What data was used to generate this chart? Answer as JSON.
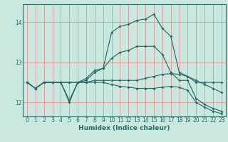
{
  "bg_color": "#c8e8e0",
  "grid_color": "#f08080",
  "line_color": "#2a6b65",
  "marker_color": "#2a6b65",
  "xlabel": "Humidex (Indice chaleur)",
  "xlim": [
    -0.5,
    23.5
  ],
  "ylim": [
    11.65,
    14.45
  ],
  "yticks": [
    12,
    13,
    14
  ],
  "xticks": [
    0,
    1,
    2,
    3,
    4,
    5,
    6,
    7,
    8,
    9,
    10,
    11,
    12,
    13,
    14,
    15,
    16,
    17,
    18,
    19,
    20,
    21,
    22,
    23
  ],
  "lines": [
    {
      "x": [
        0,
        1,
        2,
        3,
        4,
        5,
        6,
        7,
        8,
        9,
        10,
        11,
        12,
        13,
        14,
        15,
        16,
        17,
        18,
        19,
        20,
        21,
        22,
        23
      ],
      "y": [
        12.5,
        12.35,
        12.5,
        12.5,
        12.5,
        12.05,
        12.5,
        12.55,
        12.75,
        12.85,
        13.75,
        13.9,
        13.95,
        14.05,
        14.08,
        14.2,
        13.85,
        13.65,
        12.75,
        12.65,
        12.5,
        12.5,
        12.5,
        12.5
      ]
    },
    {
      "x": [
        0,
        1,
        2,
        3,
        4,
        5,
        6,
        7,
        8,
        9,
        10,
        11,
        12,
        13,
        14,
        15,
        16,
        17,
        18,
        19,
        20,
        21,
        22,
        23
      ],
      "y": [
        12.5,
        12.35,
        12.5,
        12.5,
        12.5,
        12.0,
        12.5,
        12.6,
        12.8,
        12.85,
        13.1,
        13.25,
        13.3,
        13.4,
        13.4,
        13.4,
        13.2,
        12.75,
        12.55,
        12.55,
        12.1,
        11.95,
        11.85,
        11.78
      ]
    },
    {
      "x": [
        0,
        1,
        2,
        3,
        4,
        5,
        6,
        7,
        8,
        9,
        10,
        11,
        12,
        13,
        14,
        15,
        16,
        17,
        18,
        19,
        20,
        21,
        22,
        23
      ],
      "y": [
        12.5,
        12.35,
        12.5,
        12.5,
        12.5,
        12.5,
        12.5,
        12.5,
        12.55,
        12.55,
        12.55,
        12.55,
        12.55,
        12.55,
        12.6,
        12.65,
        12.7,
        12.72,
        12.7,
        12.65,
        12.55,
        12.45,
        12.35,
        12.25
      ]
    },
    {
      "x": [
        0,
        1,
        2,
        3,
        4,
        5,
        6,
        7,
        8,
        9,
        10,
        11,
        12,
        13,
        14,
        15,
        16,
        17,
        18,
        19,
        20,
        21,
        22,
        23
      ],
      "y": [
        12.5,
        12.35,
        12.5,
        12.5,
        12.5,
        12.5,
        12.5,
        12.5,
        12.5,
        12.5,
        12.45,
        12.4,
        12.38,
        12.35,
        12.35,
        12.35,
        12.38,
        12.4,
        12.38,
        12.3,
        12.0,
        11.88,
        11.78,
        11.72
      ]
    }
  ]
}
